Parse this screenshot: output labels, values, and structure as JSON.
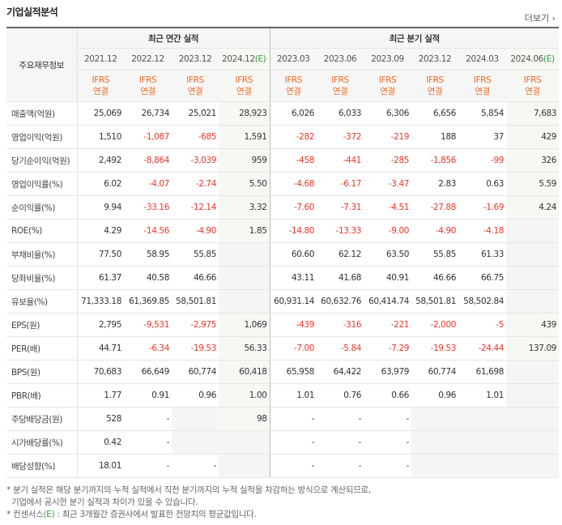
{
  "header": {
    "title": "기업실적분석",
    "more": "더보기",
    "more_arrow": "›"
  },
  "table": {
    "corner": "주요재무정보",
    "groups": [
      {
        "label": "최근 연간 실적",
        "span": 4
      },
      {
        "label": "최근 분기 실적",
        "span": 6
      }
    ],
    "periods": [
      {
        "date": "2021.12"
      },
      {
        "date": "2022.12"
      },
      {
        "date": "2023.12"
      },
      {
        "date": "2024.12",
        "mark": "(E)"
      },
      {
        "date": "2023.03"
      },
      {
        "date": "2023.06"
      },
      {
        "date": "2023.09"
      },
      {
        "date": "2023.12"
      },
      {
        "date": "2024.03"
      },
      {
        "date": "2024.06",
        "mark": "(E)"
      }
    ],
    "basis": {
      "standard": "IFRS",
      "scope": "연결"
    },
    "sections": [
      [
        {
          "label": "매출액(억원)",
          "values": [
            "25,069",
            "26,734",
            "25,021",
            "28,923",
            "6,026",
            "6,033",
            "6,306",
            "6,656",
            "5,854",
            "7,683"
          ]
        },
        {
          "label": "영업이익(억원)",
          "values": [
            "1,510",
            "-1,087",
            "-685",
            "1,591",
            "-282",
            "-372",
            "-219",
            "188",
            "37",
            "429"
          ]
        },
        {
          "label": "당기순이익(억원)",
          "values": [
            "2,492",
            "-8,864",
            "-3,039",
            "959",
            "-458",
            "-441",
            "-285",
            "-1,856",
            "-99",
            "326"
          ]
        }
      ],
      [
        {
          "label": "영업이익률(%)",
          "values": [
            "6.02",
            "-4.07",
            "-2.74",
            "5.50",
            "-4.68",
            "-6.17",
            "-3.47",
            "2.83",
            "0.63",
            "5.59"
          ]
        },
        {
          "label": "순이익률(%)",
          "values": [
            "9.94",
            "-33.16",
            "-12.14",
            "3.32",
            "-7.60",
            "-7.31",
            "-4.51",
            "-27.88",
            "-1.69",
            "4.24"
          ]
        },
        {
          "label": "ROE(%)",
          "values": [
            "4.29",
            "-14.56",
            "-4.90",
            "1.85",
            "-14.80",
            "-13.33",
            "-9.00",
            "-4.90",
            "-4.18",
            null
          ]
        }
      ],
      [
        {
          "label": "부채비율(%)",
          "values": [
            "77.50",
            "58.95",
            "55.85",
            null,
            "60.60",
            "62.12",
            "63.50",
            "55.85",
            "61.33",
            null
          ]
        },
        {
          "label": "당좌비율(%)",
          "values": [
            "61.37",
            "40.58",
            "46.66",
            null,
            "43.11",
            "41.68",
            "40.91",
            "46.66",
            "66.75",
            null
          ]
        },
        {
          "label": "유보율(%)",
          "values": [
            "71,333.18",
            "61,369.85",
            "58,501.81",
            null,
            "60,931.14",
            "60,632.76",
            "60,414.74",
            "58,501.81",
            "58,502.84",
            null
          ]
        }
      ],
      [
        {
          "label": "EPS(원)",
          "values": [
            "2,795",
            "-9,531",
            "-2,975",
            "1,069",
            "-439",
            "-316",
            "-221",
            "-2,000",
            "-5",
            "439"
          ]
        },
        {
          "label": "PER(배)",
          "values": [
            "44.71",
            "-6.34",
            "-19.53",
            "56.33",
            "-7.00",
            "-5.84",
            "-7.29",
            "-19.53",
            "-24.44",
            "137.09"
          ]
        },
        {
          "label": "BPS(원)",
          "values": [
            "70,683",
            "66,649",
            "60,774",
            "60,418",
            "65,958",
            "64,422",
            "63,979",
            "60,774",
            "61,698",
            null
          ]
        },
        {
          "label": "PBR(배)",
          "values": [
            "1.77",
            "0.91",
            "0.96",
            "1.00",
            "1.01",
            "0.76",
            "0.66",
            "0.96",
            "1.01",
            null
          ]
        }
      ],
      [
        {
          "label": "주당배당금(원)",
          "values": [
            "528",
            "-",
            null,
            "98",
            "-",
            "-",
            "-",
            null,
            null,
            null
          ]
        },
        {
          "label": "시가배당률(%)",
          "values": [
            "0.42",
            "-",
            null,
            null,
            "-",
            "-",
            "-",
            null,
            null,
            null
          ]
        },
        {
          "label": "배당성향(%)",
          "values": [
            "18.01",
            "-",
            "-",
            null,
            "-",
            "-",
            "-",
            null,
            null,
            null
          ]
        }
      ]
    ]
  },
  "notes": [
    {
      "text": "* 분기 실적은 해당 분기까지의 누적 실적에서 직전 분기까지의 누적 실적을 차감하는 방식으로 계산되므로,"
    },
    {
      "text": "기업에서 공시한 분기 실적과 차이가 있을 수 있습니다."
    },
    {
      "prefix": "* 컨센서스",
      "mark": "(E)",
      "text": " : 최근 3개월간 증권사에서 발표한 전망치의 평균값입니다."
    }
  ]
}
